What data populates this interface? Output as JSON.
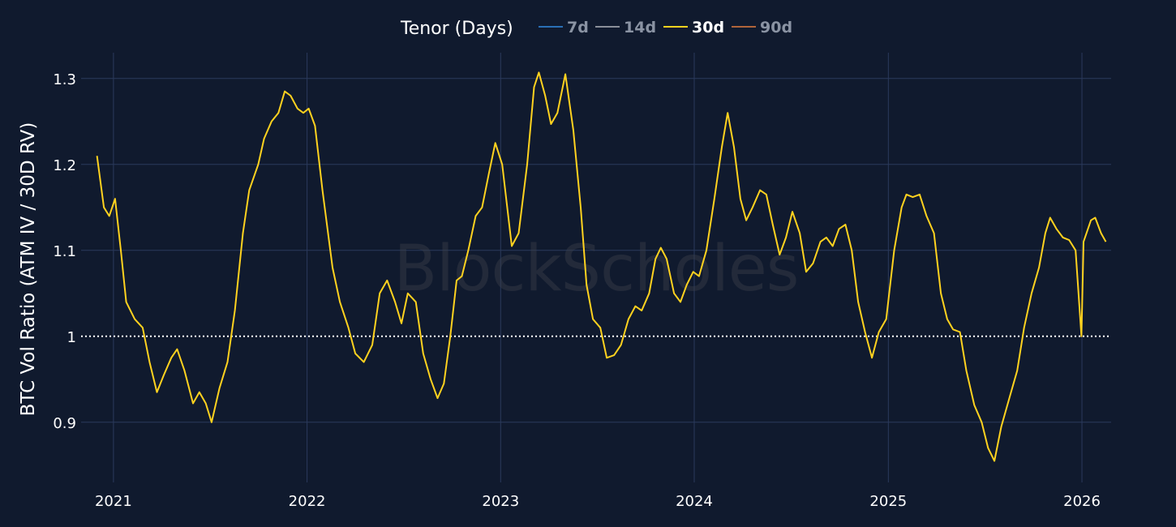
{
  "watermark": "BlockScholes",
  "legend": {
    "title": "Tenor (Days)",
    "items": [
      {
        "label": "7d",
        "color": "#2a6fb5",
        "active": false
      },
      {
        "label": "14d",
        "color": "#8a8f99",
        "active": false
      },
      {
        "label": "30d",
        "color": "#ffd21f",
        "active": true
      },
      {
        "label": "90d",
        "color": "#b0643a",
        "active": false
      }
    ]
  },
  "chart_data": {
    "type": "line",
    "title": "",
    "xlabel": "",
    "ylabel": "BTC Vol Ratio (ATM IV / 30D RV)",
    "x_ticks": [
      "2021",
      "2022",
      "2023",
      "2024",
      "2025",
      "2026"
    ],
    "y_ticks": [
      0.9,
      1,
      1.1,
      1.2,
      1.3
    ],
    "y_tick_labels": [
      "0.9",
      "1",
      "1.1",
      "1.2",
      "1.3"
    ],
    "xlim": [
      "2020-11-01",
      "2026-02-25"
    ],
    "ylim": [
      0.83,
      1.33
    ],
    "reference_line": {
      "y": 1,
      "style": "dotted",
      "color": "#ffffff"
    },
    "grid": true,
    "legend_position": "top-center",
    "series": [
      {
        "name": "30d",
        "color": "#ffd21f",
        "points": [
          [
            "2020-12-01",
            1.21
          ],
          [
            "2020-12-14",
            1.15
          ],
          [
            "2020-12-24",
            1.14
          ],
          [
            "2021-01-04",
            1.16
          ],
          [
            "2021-01-15",
            1.1
          ],
          [
            "2021-01-25",
            1.04
          ],
          [
            "2021-02-10",
            1.02
          ],
          [
            "2021-02-25",
            1.01
          ],
          [
            "2021-03-10",
            0.97
          ],
          [
            "2021-03-24",
            0.935
          ],
          [
            "2021-04-06",
            0.955
          ],
          [
            "2021-04-20",
            0.975
          ],
          [
            "2021-05-01",
            0.985
          ],
          [
            "2021-05-15",
            0.96
          ],
          [
            "2021-05-31",
            0.922
          ],
          [
            "2021-06-12",
            0.935
          ],
          [
            "2021-06-24",
            0.922
          ],
          [
            "2021-07-05",
            0.9
          ],
          [
            "2021-07-20",
            0.94
          ],
          [
            "2021-08-04",
            0.97
          ],
          [
            "2021-08-18",
            1.03
          ],
          [
            "2021-09-02",
            1.12
          ],
          [
            "2021-09-14",
            1.17
          ],
          [
            "2021-10-01",
            1.2
          ],
          [
            "2021-10-12",
            1.23
          ],
          [
            "2021-10-26",
            1.25
          ],
          [
            "2021-11-08",
            1.26
          ],
          [
            "2021-11-20",
            1.285
          ],
          [
            "2021-12-01",
            1.28
          ],
          [
            "2021-12-14",
            1.265
          ],
          [
            "2021-12-25",
            1.26
          ],
          [
            "2022-01-04",
            1.265
          ],
          [
            "2022-01-16",
            1.245
          ],
          [
            "2022-01-30",
            1.17
          ],
          [
            "2022-02-18",
            1.08
          ],
          [
            "2022-03-04",
            1.04
          ],
          [
            "2022-03-20",
            1.01
          ],
          [
            "2022-04-02",
            0.98
          ],
          [
            "2022-04-18",
            0.97
          ],
          [
            "2022-05-04",
            0.99
          ],
          [
            "2022-05-18",
            1.05
          ],
          [
            "2022-06-01",
            1.065
          ],
          [
            "2022-06-16",
            1.04
          ],
          [
            "2022-06-28",
            1.015
          ],
          [
            "2022-07-10",
            1.05
          ],
          [
            "2022-07-25",
            1.04
          ],
          [
            "2022-08-08",
            0.98
          ],
          [
            "2022-08-22",
            0.95
          ],
          [
            "2022-09-04",
            0.928
          ],
          [
            "2022-09-16",
            0.945
          ],
          [
            "2022-09-28",
            1.0
          ],
          [
            "2022-10-10",
            1.065
          ],
          [
            "2022-10-20",
            1.07
          ],
          [
            "2022-11-01",
            1.1
          ],
          [
            "2022-11-15",
            1.14
          ],
          [
            "2022-11-27",
            1.15
          ],
          [
            "2022-12-10",
            1.19
          ],
          [
            "2022-12-22",
            1.225
          ],
          [
            "2023-01-04",
            1.2
          ],
          [
            "2023-01-22",
            1.105
          ],
          [
            "2023-02-04",
            1.12
          ],
          [
            "2023-02-20",
            1.2
          ],
          [
            "2023-03-05",
            1.29
          ],
          [
            "2023-03-14",
            1.307
          ],
          [
            "2023-03-26",
            1.28
          ],
          [
            "2023-04-06",
            1.247
          ],
          [
            "2023-04-18",
            1.26
          ],
          [
            "2023-05-03",
            1.305
          ],
          [
            "2023-05-18",
            1.24
          ],
          [
            "2023-06-01",
            1.15
          ],
          [
            "2023-06-12",
            1.06
          ],
          [
            "2023-06-24",
            1.02
          ],
          [
            "2023-07-08",
            1.01
          ],
          [
            "2023-07-20",
            0.975
          ],
          [
            "2023-08-03",
            0.978
          ],
          [
            "2023-08-16",
            0.99
          ],
          [
            "2023-08-30",
            1.02
          ],
          [
            "2023-09-12",
            1.035
          ],
          [
            "2023-09-24",
            1.03
          ],
          [
            "2023-10-08",
            1.05
          ],
          [
            "2023-10-20",
            1.09
          ],
          [
            "2023-10-30",
            1.103
          ],
          [
            "2023-11-10",
            1.09
          ],
          [
            "2023-11-24",
            1.05
          ],
          [
            "2023-12-06",
            1.04
          ],
          [
            "2023-12-18",
            1.06
          ],
          [
            "2023-12-30",
            1.075
          ],
          [
            "2024-01-10",
            1.07
          ],
          [
            "2024-01-24",
            1.1
          ],
          [
            "2024-02-08",
            1.16
          ],
          [
            "2024-02-22",
            1.22
          ],
          [
            "2024-03-04",
            1.26
          ],
          [
            "2024-03-16",
            1.22
          ],
          [
            "2024-03-28",
            1.16
          ],
          [
            "2024-04-08",
            1.135
          ],
          [
            "2024-04-20",
            1.15
          ],
          [
            "2024-05-04",
            1.17
          ],
          [
            "2024-05-16",
            1.165
          ],
          [
            "2024-05-28",
            1.13
          ],
          [
            "2024-06-10",
            1.095
          ],
          [
            "2024-06-22",
            1.115
          ],
          [
            "2024-07-04",
            1.145
          ],
          [
            "2024-07-18",
            1.12
          ],
          [
            "2024-07-30",
            1.075
          ],
          [
            "2024-08-12",
            1.085
          ],
          [
            "2024-08-26",
            1.11
          ],
          [
            "2024-09-06",
            1.115
          ],
          [
            "2024-09-18",
            1.105
          ],
          [
            "2024-09-30",
            1.125
          ],
          [
            "2024-10-12",
            1.13
          ],
          [
            "2024-10-24",
            1.1
          ],
          [
            "2024-11-05",
            1.04
          ],
          [
            "2024-11-18",
            1.005
          ],
          [
            "2024-12-01",
            0.975
          ],
          [
            "2024-12-14",
            1.005
          ],
          [
            "2024-12-28",
            1.02
          ],
          [
            "2025-01-12",
            1.1
          ],
          [
            "2025-01-26",
            1.15
          ],
          [
            "2025-02-04",
            1.165
          ],
          [
            "2025-02-16",
            1.162
          ],
          [
            "2025-03-01",
            1.165
          ],
          [
            "2025-03-14",
            1.14
          ],
          [
            "2025-03-28",
            1.12
          ],
          [
            "2025-04-10",
            1.05
          ],
          [
            "2025-04-22",
            1.02
          ],
          [
            "2025-05-03",
            1.008
          ],
          [
            "2025-05-16",
            1.005
          ],
          [
            "2025-05-28",
            0.96
          ],
          [
            "2025-06-12",
            0.92
          ],
          [
            "2025-06-26",
            0.9
          ],
          [
            "2025-07-08",
            0.87
          ],
          [
            "2025-07-20",
            0.855
          ],
          [
            "2025-08-02",
            0.895
          ],
          [
            "2025-08-18",
            0.93
          ],
          [
            "2025-09-01",
            0.96
          ],
          [
            "2025-09-14",
            1.01
          ],
          [
            "2025-09-28",
            1.05
          ],
          [
            "2025-10-12",
            1.08
          ],
          [
            "2025-10-24",
            1.12
          ],
          [
            "2025-11-02",
            1.138
          ],
          [
            "2025-11-14",
            1.125
          ],
          [
            "2025-11-26",
            1.115
          ],
          [
            "2025-12-08",
            1.112
          ],
          [
            "2025-12-20",
            1.1
          ],
          [
            "2026-01-04",
            1.11
          ],
          [
            "2026-01-18",
            1.135
          ],
          [
            "2026-01-26",
            1.138
          ],
          [
            "2026-02-06",
            1.12
          ],
          [
            "2026-02-15",
            1.11
          ],
          [
            "2025-12-31",
            1.0
          ]
        ]
      }
    ]
  }
}
